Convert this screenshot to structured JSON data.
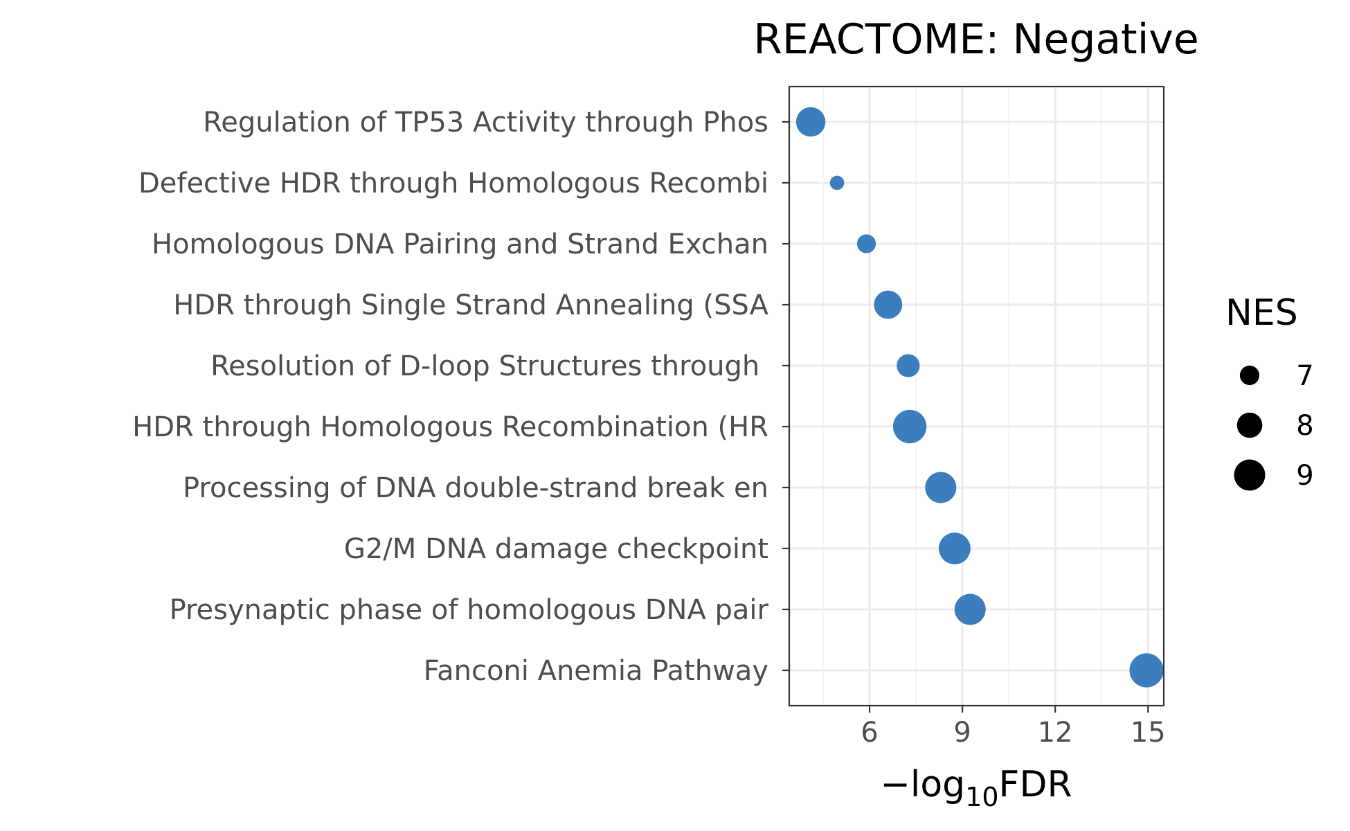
{
  "chart_data": {
    "type": "scatter",
    "title": "REACTOME: Negative",
    "xlabel": "−log10FDR",
    "xlabel_prefix": "−log",
    "xlabel_subscript": "10",
    "xlabel_suffix": "FDR",
    "ylabel": "",
    "xlim": [
      3.5,
      15.5
    ],
    "xticks": [
      6,
      9,
      12,
      15
    ],
    "xtick_labels": [
      "6",
      "9",
      "12",
      "15"
    ],
    "grid": true,
    "point_color": "#3b7dbd",
    "categories": [
      "Regulation of TP53 Activity through Phos",
      "Defective HDR through Homologous Recombi",
      "Homologous DNA Pairing and Strand Exchan",
      "HDR through Single Strand Annealing (SSA",
      "Resolution of D-loop Structures through ",
      "HDR through Homologous Recombination (HR",
      "Processing of DNA double-strand break en",
      "G2/M DNA damage checkpoint",
      "Presynaptic phase of homologous DNA pair",
      "Fanconi Anemia Pathway"
    ],
    "x": [
      4.1,
      4.95,
      5.9,
      6.6,
      7.25,
      7.3,
      8.3,
      8.75,
      9.25,
      14.95
    ],
    "size": [
      8.7,
      6.1,
      6.9,
      8.5,
      7.6,
      9.4,
      9.0,
      9.1,
      9.0,
      9.5
    ],
    "legend": {
      "title": "NES",
      "placement": "right",
      "values": [
        7,
        8,
        9
      ],
      "labels": [
        "7",
        "8",
        "9"
      ],
      "color": "#000000"
    }
  }
}
